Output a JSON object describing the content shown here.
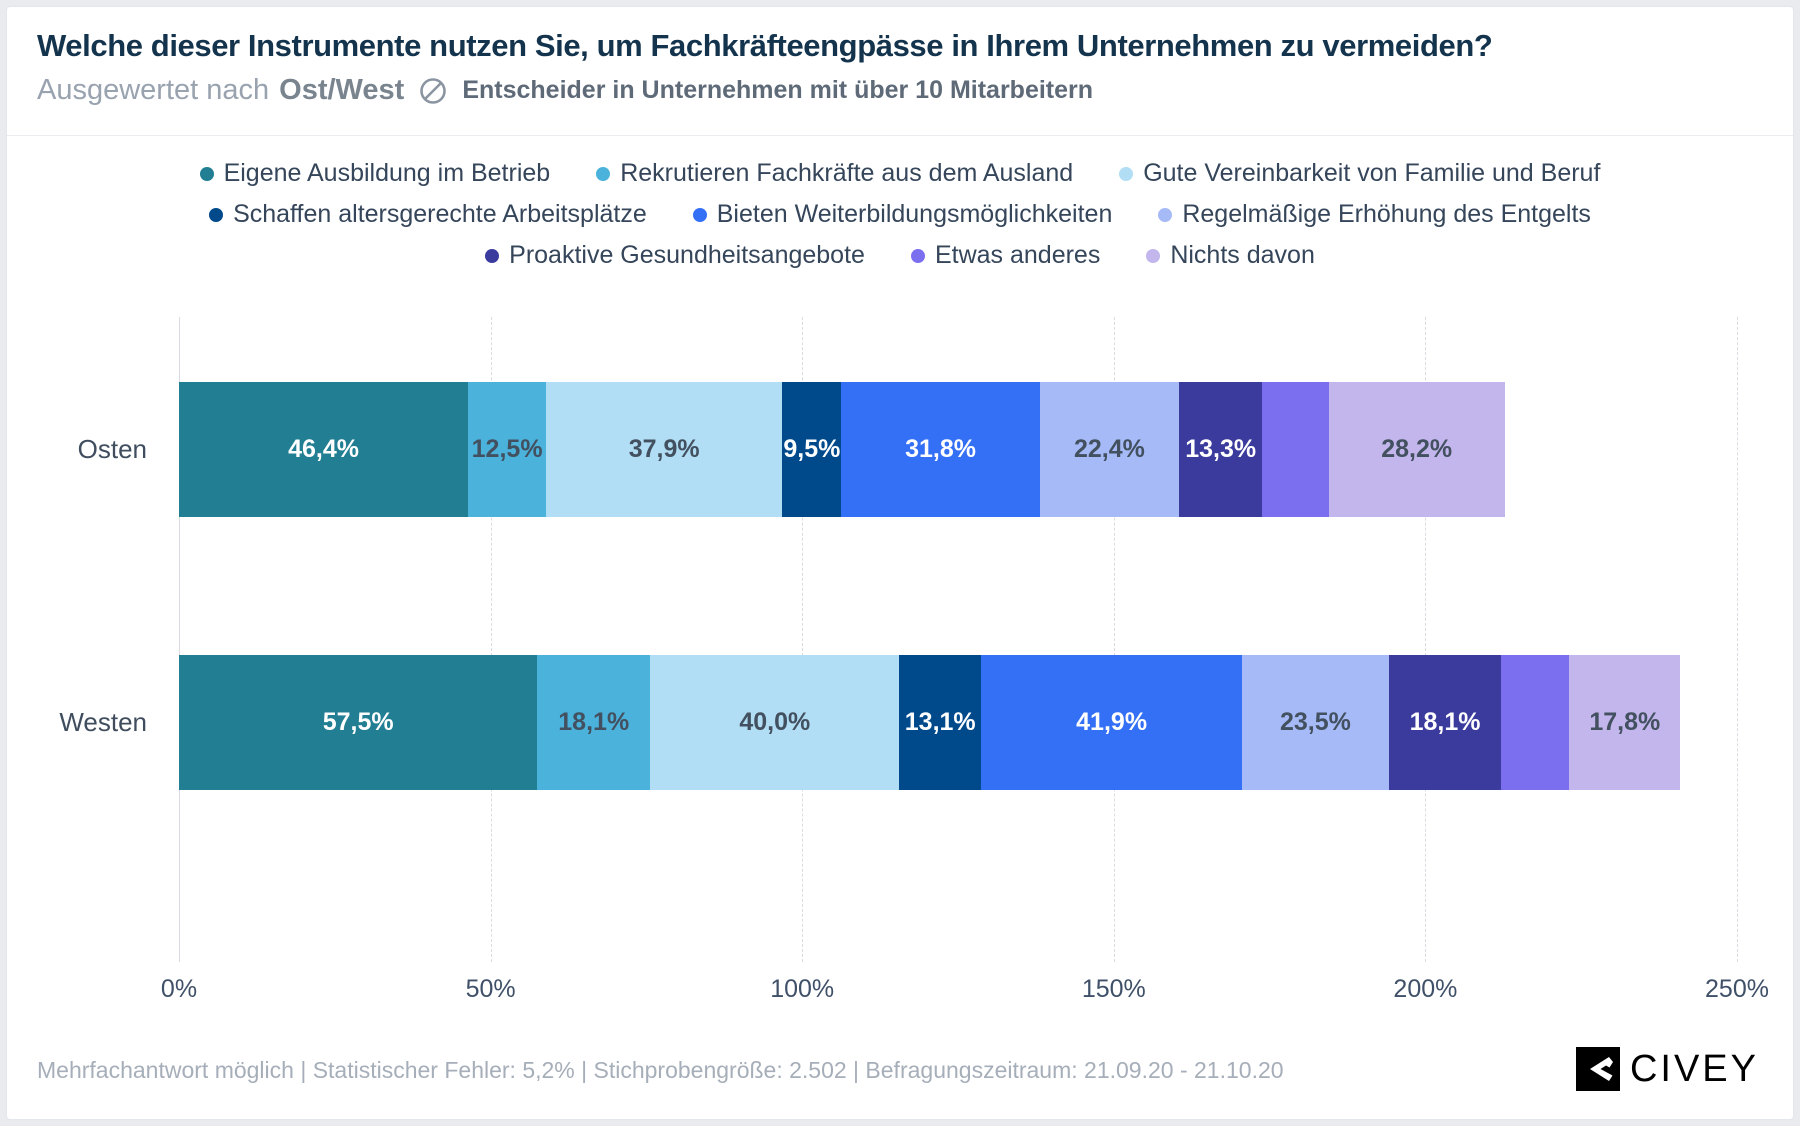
{
  "header": {
    "title": "Welche dieser Instrumente nutzen Sie, um Fachkräfteengpässe in Ihrem Unternehmen zu vermeiden?",
    "subtitle_prefix": "Ausgewertet nach",
    "subtitle_group": "Ost/West",
    "subtitle_note": "Entscheider in Unternehmen mit über 10 Mitarbeitern"
  },
  "chart_data": {
    "type": "bar",
    "subtype": "horizontal-stacked",
    "title": "Welche dieser Instrumente nutzen Sie, um Fachkräfteengpässe in Ihrem Unternehmen zu vermeiden?",
    "categories": [
      "Osten",
      "Westen"
    ],
    "series": [
      {
        "name": "Eigene Ausbildung im Betrieb",
        "color": "#217e93",
        "values": [
          46.4,
          57.5
        ],
        "labels": [
          "46,4%",
          "57,5%"
        ],
        "label_style": "light"
      },
      {
        "name": "Rekrutieren Fachkräfte aus dem Ausland",
        "color": "#4bb2dc",
        "values": [
          12.5,
          18.1
        ],
        "labels": [
          "12,5%",
          "18,1%"
        ],
        "label_style": "dark"
      },
      {
        "name": "Gute Vereinbarkeit von Familie und Beruf",
        "color": "#b1def5",
        "values": [
          37.9,
          40.0
        ],
        "labels": [
          "37,9%",
          "40,0%"
        ],
        "label_style": "dark"
      },
      {
        "name": "Schaffen altersgerechte Arbeitsplätze",
        "color": "#004a8c",
        "values": [
          9.5,
          13.1
        ],
        "labels": [
          "9,5%",
          "13,1%"
        ],
        "label_style": "light"
      },
      {
        "name": "Bieten Weiterbildungsmöglichkeiten",
        "color": "#3370f5",
        "values": [
          31.8,
          41.9
        ],
        "labels": [
          "31,8%",
          "41,9%"
        ],
        "label_style": "light"
      },
      {
        "name": "Regelmäßige Erhöhung des Entgelts",
        "color": "#a6baf8",
        "values": [
          22.4,
          23.5
        ],
        "labels": [
          "22,4%",
          "23,5%"
        ],
        "label_style": "dark"
      },
      {
        "name": "Proaktive Gesundheitsangebote",
        "color": "#3b3b9e",
        "values": [
          13.3,
          18.1
        ],
        "labels": [
          "13,3%",
          "18,1%"
        ],
        "label_style": "light"
      },
      {
        "name": "Etwas anderes",
        "color": "#7b6ff0",
        "values": [
          10.7,
          10.9
        ],
        "labels": [
          "",
          ""
        ],
        "label_style": "light"
      },
      {
        "name": "Nichts davon",
        "color": "#c2b6ec",
        "values": [
          28.2,
          17.8
        ],
        "labels": [
          "28,2%",
          "17,8%"
        ],
        "label_style": "dark"
      }
    ],
    "x_axis": {
      "ticks": [
        0,
        50,
        100,
        150,
        200,
        250
      ],
      "tick_labels": [
        "0%",
        "50%",
        "100%",
        "150%",
        "200%",
        "250%"
      ],
      "max": 250,
      "gridlines": "dashed-vertical"
    },
    "legend_position": "top",
    "legend_rows": [
      [
        0,
        1,
        2
      ],
      [
        3,
        4,
        5
      ],
      [
        6,
        7,
        8
      ]
    ]
  },
  "footer": {
    "meta": "Mehrfachantwort möglich | Statistischer Fehler: 5,2% | Stichprobengröße: 2.502 | Befragungszeitraum: 21.09.20 - 21.10.20",
    "brand": "CIVEY"
  }
}
